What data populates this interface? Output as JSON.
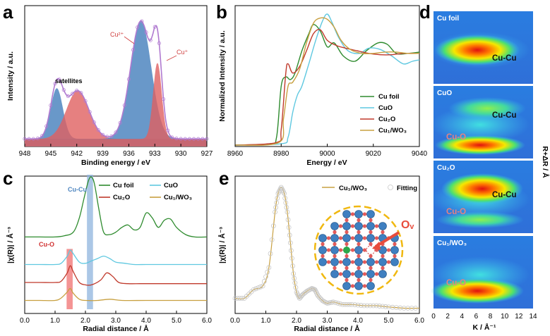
{
  "colors": {
    "cu_foil": "#2e8b2e",
    "cuo": "#5fc8e0",
    "cu2o": "#c0392b",
    "cu1wo3": "#c8a040",
    "xps_blue": "#4f86c0",
    "xps_red": "#e06060",
    "xps_envelope": "#b07ad0",
    "fit_marker": "#c8c8c8",
    "band_blue": "#8fb4de",
    "band_red": "#f07070"
  },
  "chart_data": [
    {
      "id": "a",
      "panel_label": "a",
      "type": "area",
      "xlabel": "Binding energy / eV",
      "ylabel": "Intensity / a.u.",
      "xlim": [
        948,
        927
      ],
      "xticks": [
        948,
        945,
        942,
        939,
        936,
        933,
        930,
        927
      ],
      "annotations": {
        "satellites": "satellites",
        "cu2plus": "Cu²⁺",
        "cuplus": "Cu⁺"
      },
      "components": [
        {
          "name": "sat1",
          "center": 944.3,
          "height": 0.4,
          "width": 0.7,
          "color": "blue"
        },
        {
          "name": "sat2",
          "center": 941.9,
          "height": 0.38,
          "width": 1.3,
          "color": "red"
        },
        {
          "name": "cu2plus",
          "center": 934.6,
          "height": 0.93,
          "width": 1.2,
          "color": "blue"
        },
        {
          "name": "cuplus",
          "center": 932.7,
          "height": 0.6,
          "width": 0.5,
          "color": "red"
        }
      ],
      "baseline": 0.06
    },
    {
      "id": "b",
      "panel_label": "b",
      "type": "line",
      "xlabel": "Energy / eV",
      "ylabel": "Normalized Intensity / a.u.",
      "xlim": [
        8960,
        9040
      ],
      "xticks": [
        8960,
        8980,
        9000,
        9020,
        9040
      ],
      "series": [
        {
          "name": "Cu foil",
          "key": "cu_foil",
          "x": [
            8960,
            8975,
            8978,
            8980,
            8982,
            8984,
            8986,
            8989,
            8992,
            8994,
            8997,
            9000,
            9003,
            9007,
            9012,
            9017,
            9022,
            9026,
            9030,
            9035,
            9040
          ],
          "y": [
            0.0,
            0.01,
            0.06,
            0.45,
            0.52,
            0.5,
            0.55,
            0.72,
            0.85,
            0.92,
            0.87,
            0.75,
            0.78,
            0.68,
            0.64,
            0.72,
            0.78,
            0.77,
            0.7,
            0.7,
            0.71
          ]
        },
        {
          "name": "CuO",
          "key": "cuo",
          "x": [
            8960,
            8980,
            8983,
            8985,
            8987,
            8989,
            8992,
            8995,
            8998,
            9000,
            9002,
            9005,
            9009,
            9014,
            9018,
            9023,
            9028,
            9033,
            9037,
            9040
          ],
          "y": [
            0.0,
            0.01,
            0.06,
            0.25,
            0.38,
            0.45,
            0.62,
            0.8,
            0.95,
            1.0,
            0.94,
            0.82,
            0.72,
            0.7,
            0.74,
            0.73,
            0.68,
            0.62,
            0.64,
            0.65
          ]
        },
        {
          "name": "Cu₂O",
          "key": "cu2o",
          "x": [
            8960,
            8978,
            8980,
            8982,
            8983,
            8985,
            8988,
            8991,
            8994,
            8997,
            9000,
            9004,
            9008,
            9013,
            9018,
            9023,
            9028,
            9033,
            9040
          ],
          "y": [
            0.0,
            0.02,
            0.12,
            0.55,
            0.62,
            0.55,
            0.6,
            0.72,
            0.85,
            0.88,
            0.8,
            0.76,
            0.74,
            0.72,
            0.7,
            0.69,
            0.69,
            0.7,
            0.7
          ]
        },
        {
          "name": "Cu₁/WO₃",
          "key": "cu1wo3",
          "x": [
            8960,
            8979,
            8981,
            8983,
            8985,
            8988,
            8991,
            8994,
            8997,
            9000,
            9003,
            9006,
            9010,
            9015,
            9020,
            9025,
            9030,
            9035,
            9040
          ],
          "y": [
            0.0,
            0.02,
            0.2,
            0.45,
            0.48,
            0.58,
            0.78,
            0.93,
            0.97,
            0.96,
            0.9,
            0.8,
            0.73,
            0.7,
            0.7,
            0.71,
            0.71,
            0.7,
            0.7
          ]
        }
      ]
    },
    {
      "id": "c",
      "panel_label": "c",
      "type": "line",
      "xlabel": "Radial distance / Å",
      "ylabel": "|χ(R)| / Å⁻³",
      "xlim": [
        0,
        6
      ],
      "xticks": [
        "0.0",
        "1.0",
        "2.0",
        "3.0",
        "4.0",
        "5.0",
        "6.0"
      ],
      "annotations": {
        "cu_cu": "Cu-Cu",
        "cu_o": "Cu-O"
      },
      "bands": [
        {
          "key": "band_blue",
          "x0": 2.05,
          "x1": 2.25
        },
        {
          "key": "band_red",
          "x0": 1.38,
          "x1": 1.58
        }
      ],
      "series": [
        {
          "name": "Cu foil",
          "key": "cu_foil",
          "x": [
            0.0,
            0.5,
            1.0,
            1.3,
            1.6,
            1.8,
            1.95,
            2.1,
            2.2,
            2.3,
            2.45,
            2.6,
            2.8,
            3.0,
            3.2,
            3.4,
            3.6,
            3.8,
            4.0,
            4.2,
            4.4,
            4.6,
            4.8,
            5.0,
            5.3,
            5.6,
            6.0
          ],
          "y": [
            0.58,
            0.58,
            0.58,
            0.59,
            0.62,
            0.74,
            0.9,
            1.05,
            1.08,
            1.02,
            0.8,
            0.62,
            0.6,
            0.62,
            0.66,
            0.68,
            0.64,
            0.66,
            0.78,
            0.74,
            0.66,
            0.72,
            0.73,
            0.66,
            0.6,
            0.58,
            0.58
          ]
        },
        {
          "name": "CuO",
          "key": "cuo",
          "x": [
            0.0,
            0.5,
            1.0,
            1.2,
            1.4,
            1.5,
            1.6,
            1.8,
            2.0,
            2.2,
            2.4,
            2.6,
            2.8,
            3.0,
            3.3,
            3.6,
            4.0,
            4.5,
            5.0,
            5.5,
            6.0
          ],
          "y": [
            0.35,
            0.35,
            0.35,
            0.36,
            0.42,
            0.47,
            0.44,
            0.37,
            0.36,
            0.38,
            0.4,
            0.42,
            0.4,
            0.37,
            0.36,
            0.35,
            0.35,
            0.35,
            0.35,
            0.35,
            0.35
          ]
        },
        {
          "name": "Cu₂O",
          "key": "cu2o",
          "x": [
            0.0,
            0.5,
            1.0,
            1.2,
            1.4,
            1.5,
            1.6,
            1.8,
            2.0,
            2.2,
            2.5,
            2.7,
            2.9,
            3.1,
            3.4,
            3.8,
            4.2,
            5.0,
            6.0
          ],
          "y": [
            0.2,
            0.2,
            0.2,
            0.21,
            0.28,
            0.34,
            0.29,
            0.2,
            0.18,
            0.18,
            0.22,
            0.28,
            0.25,
            0.2,
            0.19,
            0.19,
            0.19,
            0.19,
            0.19
          ]
        },
        {
          "name": "Cu₁/WO₃",
          "key": "cu1wo3",
          "x": [
            0.0,
            0.5,
            1.0,
            1.2,
            1.4,
            1.5,
            1.6,
            1.8,
            2.0,
            2.4,
            2.8,
            3.2,
            4.0,
            5.0,
            6.0
          ],
          "y": [
            0.05,
            0.05,
            0.05,
            0.07,
            0.12,
            0.15,
            0.11,
            0.06,
            0.05,
            0.05,
            0.06,
            0.05,
            0.05,
            0.05,
            0.05
          ]
        }
      ]
    },
    {
      "id": "e",
      "panel_label": "e",
      "type": "line",
      "xlabel": "Radial distance / Å",
      "ylabel": "|χ(R)| / Å⁻³",
      "xlim": [
        0,
        6
      ],
      "xticks": [
        "0.0",
        "1.0",
        "2.0",
        "3.0",
        "4.0",
        "5.0",
        "6.0"
      ],
      "legend": [
        "Cu₁/WO₃",
        "Fitting"
      ],
      "inset_label": "Oᵥ",
      "series": [
        {
          "name": "Cu₁/WO₃",
          "key": "cu1wo3",
          "x": [
            0.0,
            0.3,
            0.6,
            0.9,
            1.1,
            1.3,
            1.4,
            1.5,
            1.6,
            1.7,
            1.8,
            1.9,
            2.0,
            2.1,
            2.2,
            2.35,
            2.5,
            2.6,
            2.7,
            2.85,
            3.0,
            3.2,
            3.5,
            3.8,
            4.2,
            4.6,
            5.0,
            5.5,
            6.0
          ],
          "y": [
            0.1,
            0.1,
            0.17,
            0.2,
            0.35,
            0.8,
            0.95,
            1.0,
            0.95,
            0.8,
            0.55,
            0.3,
            0.15,
            0.1,
            0.13,
            0.16,
            0.18,
            0.17,
            0.12,
            0.08,
            0.06,
            0.07,
            0.05,
            0.05,
            0.04,
            0.04,
            0.03,
            0.02,
            0.02
          ]
        }
      ]
    },
    {
      "id": "d",
      "panel_label": "d",
      "type": "heatmap",
      "xlabel": "K / Å⁻¹",
      "ylabel": "R+ΔR / Å",
      "xticks": [
        "0",
        "2",
        "4",
        "6",
        "8",
        "10",
        "12",
        "14"
      ],
      "maps": [
        {
          "title": "Cu foil",
          "labels": [
            {
              "text": "Cu-Cu",
              "type": "cu"
            }
          ]
        },
        {
          "title": "CuO",
          "labels": [
            {
              "text": "Cu-Cu",
              "type": "cu"
            },
            {
              "text": "Cu-O",
              "type": "o"
            }
          ]
        },
        {
          "title": "Cu₂O",
          "labels": [
            {
              "text": "Cu-Cu",
              "type": "cu"
            },
            {
              "text": "Cu-O",
              "type": "o"
            }
          ]
        },
        {
          "title": "Cu₁/WO₃",
          "labels": [
            {
              "text": "Cu-O",
              "type": "o"
            }
          ]
        }
      ]
    }
  ]
}
